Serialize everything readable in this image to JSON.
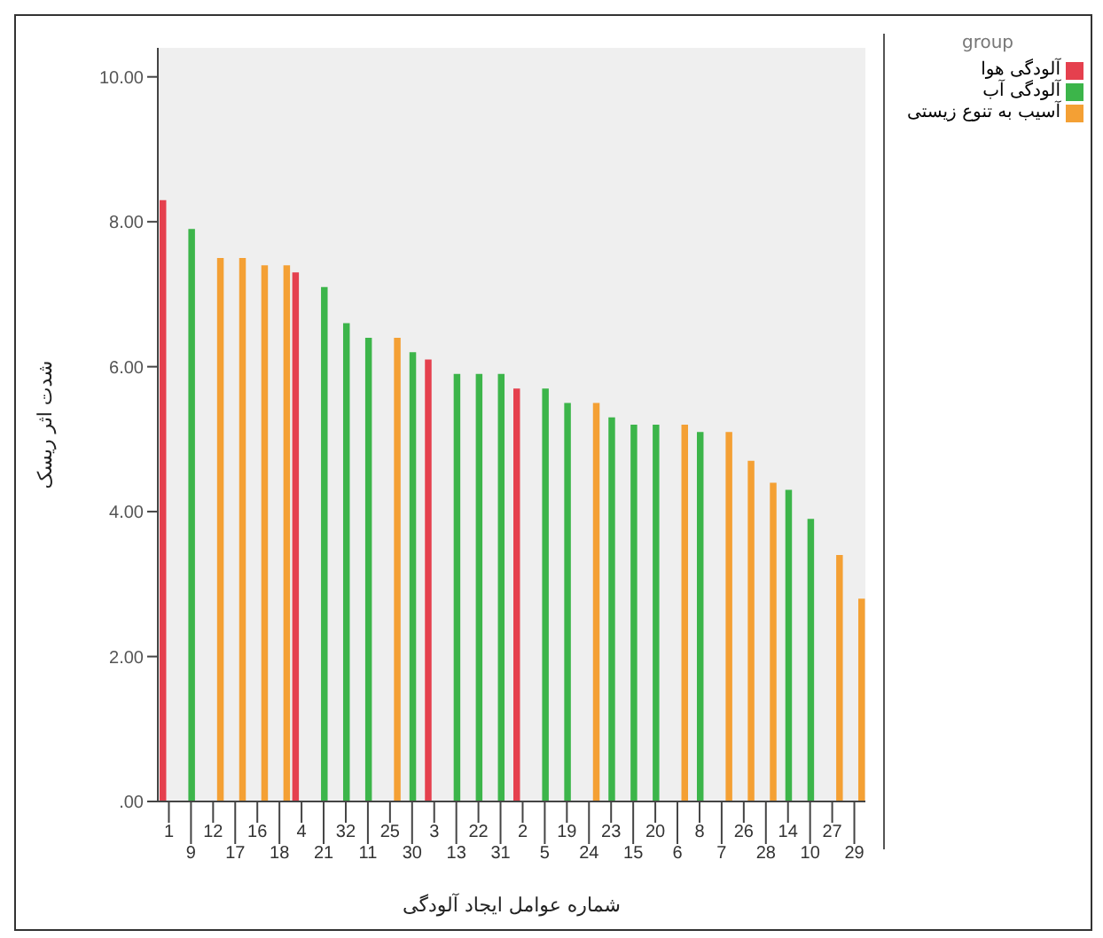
{
  "chart_data": {
    "type": "bar",
    "xlabel": "شماره عوامل ایجاد آلودگی",
    "ylabel": "شدت اثر ریسک",
    "legend_title": "group",
    "categories": [
      "1",
      "9",
      "12",
      "17",
      "16",
      "18",
      "4",
      "21",
      "32",
      "11",
      "25",
      "30",
      "3",
      "13",
      "22",
      "31",
      "2",
      "5",
      "19",
      "24",
      "23",
      "15",
      "20",
      "6",
      "8",
      "7",
      "26",
      "28",
      "14",
      "10",
      "27",
      "29"
    ],
    "series": [
      {
        "name": "آلودگی هوا",
        "color": "#e5404e",
        "values": [
          8.3,
          null,
          null,
          null,
          null,
          null,
          7.3,
          null,
          null,
          null,
          null,
          null,
          6.1,
          null,
          null,
          null,
          5.7,
          null,
          null,
          null,
          null,
          null,
          null,
          null,
          null,
          null,
          null,
          null,
          null,
          null,
          null,
          null
        ]
      },
      {
        "name": "آلودگی آب",
        "color": "#3cb54a",
        "values": [
          null,
          7.9,
          null,
          null,
          null,
          null,
          null,
          7.1,
          6.6,
          6.4,
          null,
          6.2,
          null,
          5.9,
          5.9,
          5.9,
          null,
          5.7,
          5.5,
          null,
          5.3,
          5.2,
          5.2,
          null,
          5.1,
          null,
          null,
          null,
          4.3,
          3.9,
          null,
          null
        ]
      },
      {
        "name": "آسیب به تنوع زیستی",
        "color": "#f4a034",
        "values": [
          null,
          null,
          7.5,
          7.5,
          7.4,
          7.4,
          null,
          null,
          null,
          null,
          6.4,
          null,
          null,
          null,
          null,
          null,
          null,
          null,
          null,
          5.5,
          null,
          null,
          null,
          5.2,
          null,
          5.1,
          4.7,
          4.4,
          null,
          null,
          3.4,
          2.8
        ]
      }
    ],
    "ylim": [
      0,
      10.4
    ],
    "yticks": [
      {
        "value": 0,
        "label": ".00"
      },
      {
        "value": 2,
        "label": "2.00"
      },
      {
        "value": 4,
        "label": "4.00"
      },
      {
        "value": 6,
        "label": "6.00"
      },
      {
        "value": 8,
        "label": "8.00"
      },
      {
        "value": 10,
        "label": "10.00"
      }
    ],
    "grid": false,
    "legend": "top right"
  }
}
